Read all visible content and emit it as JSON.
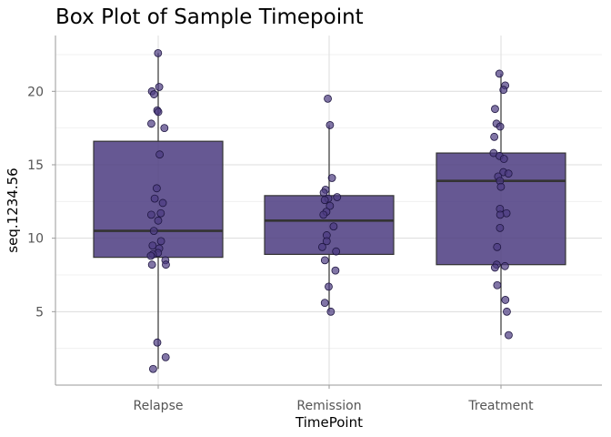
{
  "chart_data": {
    "type": "box",
    "title": "Box Plot of Sample Timepoint",
    "xlabel": "TimePoint",
    "ylabel": "seq.1234.56",
    "categories": [
      "Relapse",
      "Remission",
      "Treatment"
    ],
    "ylim": [
      0,
      23.8
    ],
    "yticks": [
      5,
      10,
      15,
      20
    ],
    "grid": true,
    "box_color": "#4b3b80",
    "point_color": "#4b3b80",
    "boxes": [
      {
        "category": "Relapse",
        "whisker_low": 1.1,
        "q1": 8.7,
        "median": 10.5,
        "q3": 16.6,
        "whisker_high": 22.6
      },
      {
        "category": "Remission",
        "whisker_low": 5.0,
        "q1": 8.9,
        "median": 11.2,
        "q3": 12.9,
        "whisker_high": 17.7
      },
      {
        "category": "Treatment",
        "whisker_low": 3.4,
        "q1": 8.2,
        "median": 13.9,
        "q3": 15.8,
        "whisker_high": 21.2
      }
    ],
    "points": [
      {
        "category": "Relapse",
        "values": [
          22.6,
          20.3,
          20.0,
          19.8,
          18.7,
          18.6,
          17.8,
          17.5,
          15.7,
          13.4,
          12.7,
          12.4,
          11.7,
          11.6,
          11.2,
          10.5,
          9.8,
          9.5,
          9.3,
          9.0,
          8.9,
          8.8,
          8.5,
          8.2,
          8.2,
          2.9,
          1.9,
          1.1
        ]
      },
      {
        "category": "Remission",
        "values": [
          19.5,
          17.7,
          14.1,
          13.3,
          13.1,
          12.8,
          12.7,
          12.6,
          12.2,
          11.8,
          11.6,
          10.8,
          10.2,
          9.8,
          9.4,
          9.1,
          8.5,
          7.8,
          6.7,
          5.6,
          5.0
        ]
      },
      {
        "category": "Treatment",
        "values": [
          21.2,
          20.4,
          20.1,
          18.8,
          17.8,
          17.6,
          16.9,
          15.8,
          15.6,
          15.4,
          14.5,
          14.4,
          14.2,
          13.9,
          13.5,
          12.0,
          11.7,
          11.6,
          10.7,
          9.4,
          8.2,
          8.1,
          8.0,
          6.8,
          5.8,
          5.0,
          3.4
        ]
      }
    ]
  }
}
